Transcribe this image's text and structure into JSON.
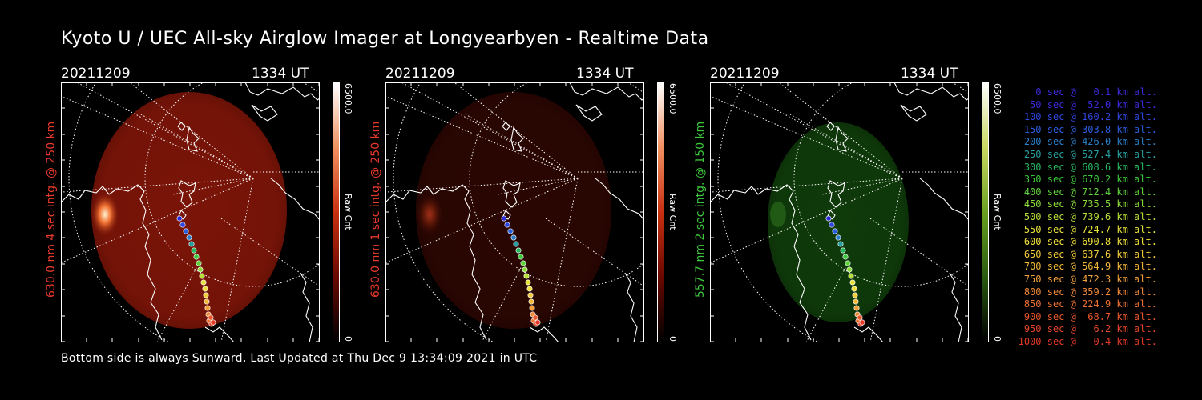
{
  "title": "Kyoto U / UEC All-sky Airglow Imager at Longyearbyen - Realtime Data",
  "footer": "Bottom side is always Sunward, Last Updated at Thu Dec  9 13:34:09 2021 in UTC",
  "panels": [
    {
      "date": "20211209",
      "time": "1334 UT",
      "label": "630.0 nm 4 sec intg. @ 250 km",
      "label_color": "#e8392b",
      "cbar_max": "6500.0",
      "cbar_min": "0",
      "cbar_unit": "Raw Cnt",
      "palette": "red"
    },
    {
      "date": "20211209",
      "time": "1334 UT",
      "label": "630.0 nm 1 sec intg. @ 250 km",
      "label_color": "#e8392b",
      "cbar_max": "6500.0",
      "cbar_min": "0",
      "cbar_unit": "Raw Cnt",
      "palette": "red"
    },
    {
      "date": "20211209",
      "time": "1334 UT",
      "label": "557.7 nm 2 sec intg. @ 150 km",
      "label_color": "#3cc83c",
      "cbar_max": "6500.0",
      "cbar_min": "0",
      "cbar_unit": "Raw Cnt",
      "palette": "green"
    }
  ],
  "legend": [
    {
      "text": "0 sec @   0.1 km alt.",
      "color": "#3b2bd8"
    },
    {
      "text": "50 sec @  52.0 km alt.",
      "color": "#3b2bd8"
    },
    {
      "text": "100 sec @ 160.2 km alt.",
      "color": "#2f46e0"
    },
    {
      "text": "150 sec @ 303.8 km alt.",
      "color": "#2a5ee0"
    },
    {
      "text": "200 sec @ 426.0 km alt.",
      "color": "#2a7ec8"
    },
    {
      "text": "250 sec @ 527.4 km alt.",
      "color": "#28a0a0"
    },
    {
      "text": "300 sec @ 608.6 km alt.",
      "color": "#28b860"
    },
    {
      "text": "350 sec @ 670.2 km alt.",
      "color": "#3cc83c"
    },
    {
      "text": "400 sec @ 712.4 km alt.",
      "color": "#5ed23a"
    },
    {
      "text": "450 sec @ 735.5 km alt.",
      "color": "#8cdc3a"
    },
    {
      "text": "500 sec @ 739.6 km alt.",
      "color": "#b8e03a"
    },
    {
      "text": "550 sec @ 724.7 km alt.",
      "color": "#e6e23a"
    },
    {
      "text": "600 sec @ 690.8 km alt.",
      "color": "#f2e03a"
    },
    {
      "text": "650 sec @ 637.6 km alt.",
      "color": "#f2cc3a"
    },
    {
      "text": "700 sec @ 564.9 km alt.",
      "color": "#f2b83a"
    },
    {
      "text": "750 sec @ 472.3 km alt.",
      "color": "#f2a03a"
    },
    {
      "text": "800 sec @ 359.2 km alt.",
      "color": "#f0883a"
    },
    {
      "text": "850 sec @ 224.9 km alt.",
      "color": "#ec7030"
    },
    {
      "text": "900 sec @  68.7 km alt.",
      "color": "#e8582c"
    },
    {
      "text": "950 sec @   6.2 km alt.",
      "color": "#e6462a"
    },
    {
      "text": "1000 sec @   0.4 km alt.",
      "color": "#e43a28"
    }
  ]
}
